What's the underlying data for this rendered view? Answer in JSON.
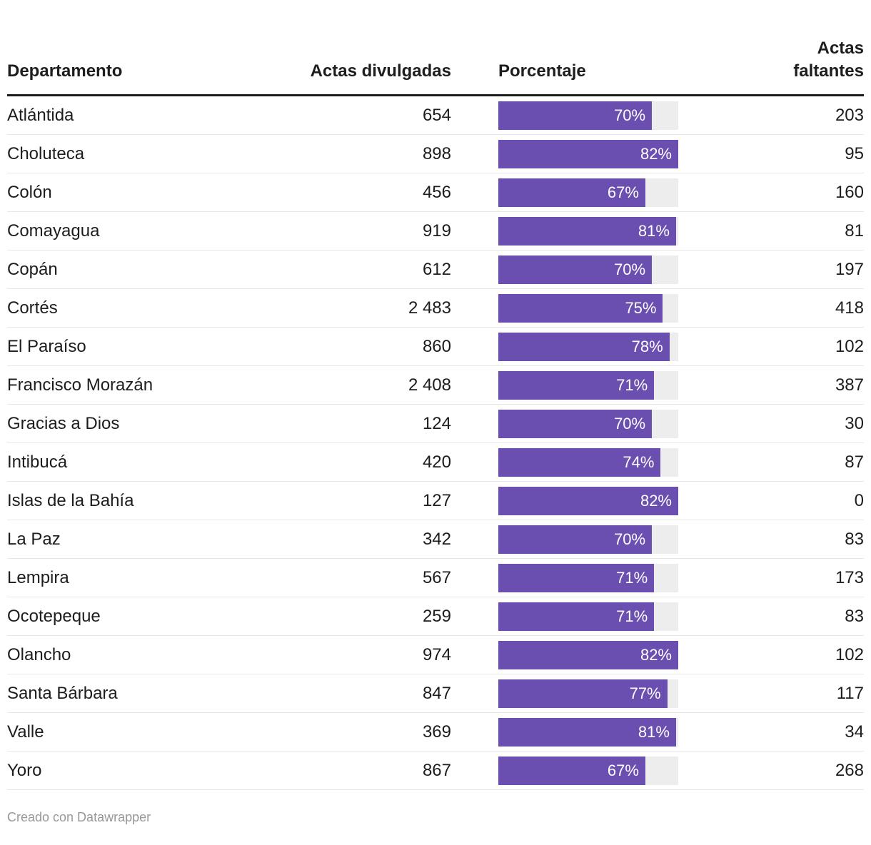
{
  "header": {
    "col_departamento": "Departamento",
    "col_divulgadas": "Actas divulgadas",
    "col_porcentaje": "Porcentaje",
    "col_faltantes": "Actas faltantes"
  },
  "footer": {
    "attribution": "Creado con Datawrapper"
  },
  "colors": {
    "bar_fill": "#6a4fb1",
    "bar_track": "#ededed",
    "header_rule": "#1c1c1c",
    "row_divider": "#e8e8e8",
    "text": "#1d1d1d",
    "footer_text": "#979797"
  },
  "chart_data": {
    "type": "table",
    "title": "",
    "columns": [
      "Departamento",
      "Actas divulgadas",
      "Porcentaje",
      "Actas faltantes"
    ],
    "bar_column": "Porcentaje",
    "bar_scale_max": 82,
    "percent_suffix": "%",
    "rows": [
      {
        "departamento": "Atlántida",
        "actas_divulgadas": "654",
        "porcentaje": 70,
        "actas_faltantes": "203"
      },
      {
        "departamento": "Choluteca",
        "actas_divulgadas": "898",
        "porcentaje": 82,
        "actas_faltantes": "95"
      },
      {
        "departamento": "Colón",
        "actas_divulgadas": "456",
        "porcentaje": 67,
        "actas_faltantes": "160"
      },
      {
        "departamento": "Comayagua",
        "actas_divulgadas": "919",
        "porcentaje": 81,
        "actas_faltantes": "81"
      },
      {
        "departamento": "Copán",
        "actas_divulgadas": "612",
        "porcentaje": 70,
        "actas_faltantes": "197"
      },
      {
        "departamento": "Cortés",
        "actas_divulgadas": "2 483",
        "porcentaje": 75,
        "actas_faltantes": "418"
      },
      {
        "departamento": "El Paraíso",
        "actas_divulgadas": "860",
        "porcentaje": 78,
        "actas_faltantes": "102"
      },
      {
        "departamento": "Francisco Morazán",
        "actas_divulgadas": "2 408",
        "porcentaje": 71,
        "actas_faltantes": "387"
      },
      {
        "departamento": "Gracias a Dios",
        "actas_divulgadas": "124",
        "porcentaje": 70,
        "actas_faltantes": "30"
      },
      {
        "departamento": "Intibucá",
        "actas_divulgadas": "420",
        "porcentaje": 74,
        "actas_faltantes": "87"
      },
      {
        "departamento": "Islas de la Bahía",
        "actas_divulgadas": "127",
        "porcentaje": 82,
        "actas_faltantes": "0"
      },
      {
        "departamento": "La Paz",
        "actas_divulgadas": "342",
        "porcentaje": 70,
        "actas_faltantes": "83"
      },
      {
        "departamento": "Lempira",
        "actas_divulgadas": "567",
        "porcentaje": 71,
        "actas_faltantes": "173"
      },
      {
        "departamento": "Ocotepeque",
        "actas_divulgadas": "259",
        "porcentaje": 71,
        "actas_faltantes": "83"
      },
      {
        "departamento": "Olancho",
        "actas_divulgadas": "974",
        "porcentaje": 82,
        "actas_faltantes": "102"
      },
      {
        "departamento": "Santa Bárbara",
        "actas_divulgadas": "847",
        "porcentaje": 77,
        "actas_faltantes": "117"
      },
      {
        "departamento": "Valle",
        "actas_divulgadas": "369",
        "porcentaje": 81,
        "actas_faltantes": "34"
      },
      {
        "departamento": "Yoro",
        "actas_divulgadas": "867",
        "porcentaje": 67,
        "actas_faltantes": "268"
      }
    ]
  }
}
